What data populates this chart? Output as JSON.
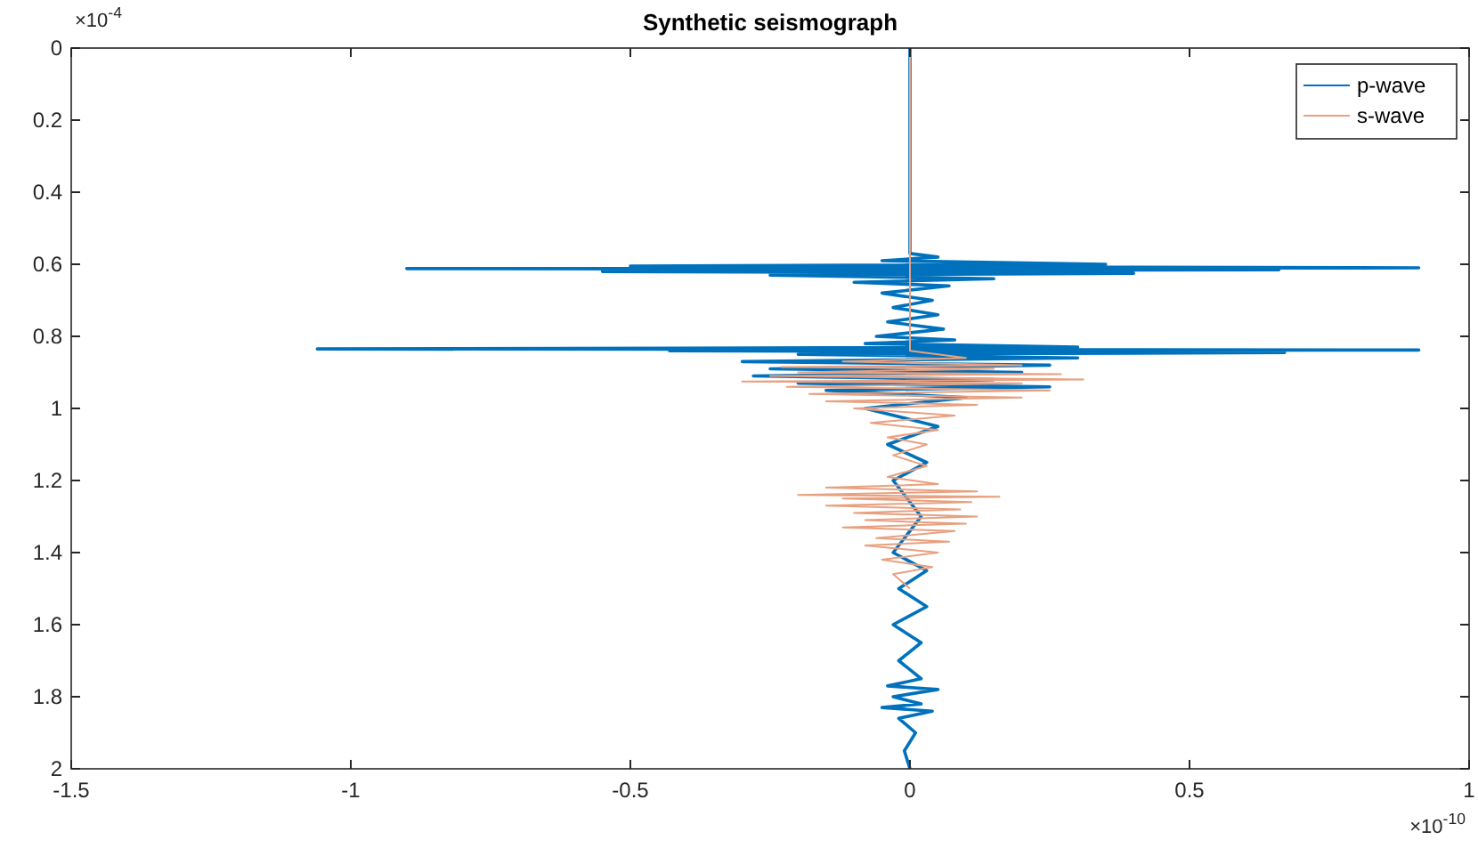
{
  "chart_data": {
    "type": "line",
    "title": "Synthetic seismograph",
    "xlim": [
      -1.5,
      1
    ],
    "xticks": [
      -1.5,
      -1,
      -0.5,
      0,
      0.5,
      1
    ],
    "ylim": [
      2,
      0
    ],
    "yticks": [
      0,
      0.2,
      0.4,
      0.6,
      0.8,
      1,
      1.2,
      1.4,
      1.6,
      1.8,
      2
    ],
    "annotations": [
      "×10$^{-4}$",
      "×10$^{-10}$"
    ],
    "legend": "top right",
    "grid": false,
    "series": [
      {
        "name": "p-wave",
        "color": "#0072bd",
        "x": [
          0,
          0,
          0.05,
          -0.05,
          0.35,
          -0.5,
          0.91,
          -0.9,
          0.66,
          -0.55,
          0.4,
          -0.25,
          0.15,
          -0.1,
          0.07,
          -0.05,
          0.04,
          -0.03,
          0.05,
          -0.04,
          0.06,
          -0.06,
          0.08,
          -0.08,
          0.3,
          -1.06,
          0.91,
          -0.43,
          0.67,
          -0.2,
          0.3,
          -0.3,
          0.25,
          -0.25,
          0.2,
          -0.28,
          0.15,
          -0.2,
          0.25,
          -0.15,
          0.1,
          -0.08,
          0.05,
          -0.04,
          0.03,
          -0.03,
          0.02,
          -0.03,
          0.03,
          -0.02,
          0.03,
          -0.03,
          0.02,
          -0.02,
          0.02,
          -0.04,
          0.05,
          -0.03,
          0.02,
          -0.05,
          0.04,
          -0.02,
          0.01,
          -0.01,
          0
        ],
        "values": [
          0,
          0.57,
          0.58,
          0.59,
          0.6,
          0.605,
          0.61,
          0.612,
          0.615,
          0.62,
          0.625,
          0.63,
          0.64,
          0.65,
          0.66,
          0.68,
          0.7,
          0.72,
          0.74,
          0.76,
          0.78,
          0.8,
          0.81,
          0.82,
          0.83,
          0.835,
          0.838,
          0.84,
          0.845,
          0.85,
          0.86,
          0.87,
          0.88,
          0.89,
          0.9,
          0.91,
          0.92,
          0.93,
          0.94,
          0.95,
          0.97,
          1,
          1.05,
          1.1,
          1.15,
          1.2,
          1.3,
          1.4,
          1.45,
          1.5,
          1.55,
          1.6,
          1.65,
          1.7,
          1.75,
          1.77,
          1.78,
          1.8,
          1.82,
          1.83,
          1.84,
          1.86,
          1.9,
          1.95,
          2
        ]
      },
      {
        "name": "s-wave",
        "color": "#e8a080",
        "x": [
          0,
          0,
          0.1,
          -0.12,
          0.2,
          -0.23,
          0.15,
          -0.2,
          0.27,
          -0.25,
          0.31,
          -0.3,
          0.2,
          -0.22,
          0.25,
          -0.18,
          0.2,
          -0.15,
          0.12,
          -0.1,
          0.08,
          -0.07,
          0.05,
          -0.04,
          0.03,
          -0.03,
          0.03,
          -0.04,
          0.05,
          -0.15,
          0.12,
          -0.2,
          0.16,
          -0.12,
          0.11,
          -0.15,
          0.09,
          -0.1,
          0.12,
          -0.08,
          0.1,
          -0.12,
          0.08,
          -0.06,
          0.07,
          -0.08,
          0.05,
          -0.05,
          0.04,
          -0.03,
          0
        ],
        "values": [
          0,
          0.84,
          0.86,
          0.87,
          0.88,
          0.885,
          0.89,
          0.9,
          0.905,
          0.91,
          0.92,
          0.925,
          0.93,
          0.94,
          0.95,
          0.96,
          0.97,
          0.98,
          0.99,
          1,
          1.02,
          1.04,
          1.06,
          1.08,
          1.1,
          1.13,
          1.16,
          1.19,
          1.21,
          1.22,
          1.23,
          1.24,
          1.245,
          1.25,
          1.26,
          1.27,
          1.28,
          1.29,
          1.3,
          1.31,
          1.32,
          1.33,
          1.34,
          1.36,
          1.37,
          1.38,
          1.4,
          1.42,
          1.44,
          1.46,
          1.5
        ]
      }
    ]
  }
}
